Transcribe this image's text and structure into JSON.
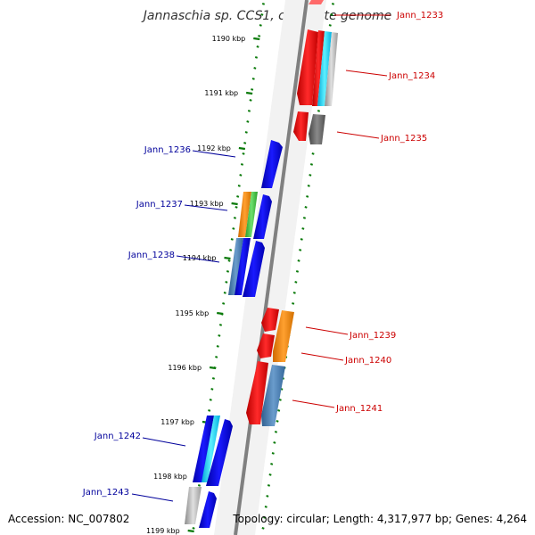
{
  "title": "Jannaschia sp. CCS1, complete genome",
  "footer": {
    "accession": "Accession: NC_007802",
    "summary": "Topology: circular; Length: 4,317,977 bp; Genes: 4,264"
  },
  "kbp_labels": [
    "1190 kbp",
    "1191 kbp",
    "1192 kbp",
    "1193 kbp",
    "1194 kbp",
    "1195 kbp",
    "1196 kbp",
    "1197 kbp",
    "1198 kbp",
    "1199 kbp"
  ],
  "gene_labels": {
    "reverse": [
      "Jann_1233",
      "Jann_1234",
      "Jann_1235",
      "Jann_1239",
      "Jann_1240",
      "Jann_1241"
    ],
    "forward": [
      "Jann_1236",
      "Jann_1237",
      "Jann_1238",
      "Jann_1242",
      "Jann_1243"
    ]
  },
  "colors": {
    "forward_label": "#00009b",
    "reverse_label": "#cc0000",
    "tick": "#0a7a0a",
    "backbone": "#8a8a8a"
  }
}
